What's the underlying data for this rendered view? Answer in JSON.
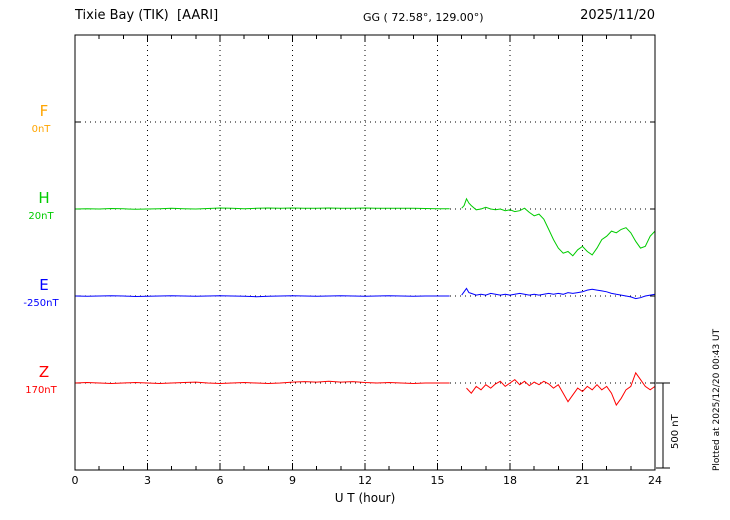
{
  "header": {
    "title": "Tixie Bay (TIK)  [AARI]",
    "coords": "GG ( 72.58°, 129.00°)",
    "date": "2025/11/20"
  },
  "footer": {
    "plotted_at": "Plotted at 2025/12/20 00:43 UT"
  },
  "chart_data": {
    "type": "line",
    "title": "Tixie Bay (TIK)  [AARI]",
    "xlabel": "U T (hour)",
    "x_range": [
      0,
      24
    ],
    "x_ticks": [
      0,
      3,
      6,
      9,
      12,
      15,
      18,
      21,
      24
    ],
    "y_unit": "nT",
    "values_are": "offset in nT from each channel baseline",
    "scale_bar_label": "500 nT",
    "scale_bar_nT": 500,
    "series": [
      {
        "name": "F",
        "color": "#FFA500",
        "baseline_label": "0nT",
        "baseline_value_nT": 0,
        "segments": []
      },
      {
        "name": "H",
        "color": "#00CC00",
        "baseline_label": "20nT",
        "baseline_value_nT": 20,
        "segments": [
          [
            [
              0,
              0
            ],
            [
              0.5,
              2
            ],
            [
              1,
              0
            ],
            [
              1.5,
              3
            ],
            [
              2,
              1
            ],
            [
              2.5,
              -2
            ],
            [
              3,
              0
            ],
            [
              3.5,
              2
            ],
            [
              4,
              4
            ],
            [
              4.5,
              2
            ],
            [
              5,
              0
            ],
            [
              5.5,
              3
            ],
            [
              6,
              6
            ],
            [
              6.5,
              4
            ],
            [
              7,
              2
            ],
            [
              7.5,
              4
            ],
            [
              8,
              6
            ],
            [
              8.5,
              5
            ],
            [
              9,
              6
            ],
            [
              9.5,
              4
            ],
            [
              10,
              5
            ],
            [
              10.5,
              6
            ],
            [
              11,
              4
            ],
            [
              11.5,
              5
            ],
            [
              12,
              6
            ],
            [
              12.5,
              5
            ],
            [
              13,
              4
            ],
            [
              13.5,
              5
            ],
            [
              14,
              4
            ],
            [
              14.5,
              3
            ],
            [
              15,
              2
            ],
            [
              15.5,
              2
            ]
          ],
          [
            [
              16,
              5
            ],
            [
              16.1,
              20
            ],
            [
              16.2,
              60
            ],
            [
              16.3,
              35
            ],
            [
              16.4,
              20
            ],
            [
              16.6,
              -5
            ],
            [
              16.8,
              0
            ],
            [
              17,
              10
            ],
            [
              17.2,
              0
            ],
            [
              17.4,
              -5
            ],
            [
              17.6,
              0
            ],
            [
              17.8,
              -10
            ],
            [
              18,
              -5
            ],
            [
              18.2,
              -15
            ],
            [
              18.4,
              -10
            ],
            [
              18.6,
              5
            ],
            [
              18.8,
              -20
            ],
            [
              19,
              -40
            ],
            [
              19.2,
              -30
            ],
            [
              19.4,
              -60
            ],
            [
              19.6,
              -120
            ],
            [
              19.8,
              -180
            ],
            [
              20,
              -230
            ],
            [
              20.2,
              -260
            ],
            [
              20.4,
              -250
            ],
            [
              20.6,
              -275
            ],
            [
              20.8,
              -240
            ],
            [
              21,
              -220
            ],
            [
              21.2,
              -250
            ],
            [
              21.4,
              -270
            ],
            [
              21.6,
              -230
            ],
            [
              21.8,
              -180
            ],
            [
              22,
              -160
            ],
            [
              22.2,
              -130
            ],
            [
              22.4,
              -140
            ],
            [
              22.6,
              -120
            ],
            [
              22.8,
              -110
            ],
            [
              23,
              -140
            ],
            [
              23.2,
              -190
            ],
            [
              23.4,
              -230
            ],
            [
              23.6,
              -220
            ],
            [
              23.8,
              -160
            ],
            [
              24,
              -130
            ]
          ]
        ]
      },
      {
        "name": "E",
        "color": "#0000FF",
        "baseline_label": "-250nT",
        "baseline_value_nT": -250,
        "segments": [
          [
            [
              0,
              0
            ],
            [
              0.5,
              -2
            ],
            [
              1,
              0
            ],
            [
              1.5,
              2
            ],
            [
              2,
              0
            ],
            [
              2.5,
              -3
            ],
            [
              3,
              -2
            ],
            [
              3.5,
              0
            ],
            [
              4,
              2
            ],
            [
              4.5,
              0
            ],
            [
              5,
              -2
            ],
            [
              5.5,
              0
            ],
            [
              6,
              2
            ],
            [
              6.5,
              0
            ],
            [
              7,
              -2
            ],
            [
              7.5,
              -4
            ],
            [
              8,
              -2
            ],
            [
              8.5,
              0
            ],
            [
              9,
              2
            ],
            [
              9.5,
              0
            ],
            [
              10,
              -2
            ],
            [
              10.5,
              0
            ],
            [
              11,
              2
            ],
            [
              11.5,
              0
            ],
            [
              12,
              -2
            ],
            [
              12.5,
              0
            ],
            [
              13,
              2
            ],
            [
              13.5,
              0
            ],
            [
              14,
              -2
            ],
            [
              14.5,
              0
            ],
            [
              15,
              0
            ],
            [
              15.5,
              0
            ]
          ],
          [
            [
              16,
              5
            ],
            [
              16.2,
              45
            ],
            [
              16.3,
              20
            ],
            [
              16.4,
              15
            ],
            [
              16.6,
              5
            ],
            [
              16.8,
              10
            ],
            [
              17,
              5
            ],
            [
              17.2,
              15
            ],
            [
              17.4,
              10
            ],
            [
              17.6,
              5
            ],
            [
              17.8,
              10
            ],
            [
              18,
              5
            ],
            [
              18.2,
              10
            ],
            [
              18.4,
              15
            ],
            [
              18.6,
              10
            ],
            [
              18.8,
              5
            ],
            [
              19,
              10
            ],
            [
              19.2,
              5
            ],
            [
              19.4,
              10
            ],
            [
              19.6,
              15
            ],
            [
              19.8,
              10
            ],
            [
              20,
              15
            ],
            [
              20.2,
              10
            ],
            [
              20.4,
              20
            ],
            [
              20.6,
              15
            ],
            [
              20.8,
              20
            ],
            [
              21,
              25
            ],
            [
              21.2,
              35
            ],
            [
              21.4,
              40
            ],
            [
              21.6,
              35
            ],
            [
              21.8,
              30
            ],
            [
              22,
              25
            ],
            [
              22.2,
              15
            ],
            [
              22.4,
              10
            ],
            [
              22.6,
              5
            ],
            [
              22.8,
              0
            ],
            [
              23,
              -5
            ],
            [
              23.2,
              -15
            ],
            [
              23.4,
              -10
            ],
            [
              23.6,
              0
            ],
            [
              23.8,
              5
            ],
            [
              24,
              10
            ]
          ]
        ]
      },
      {
        "name": "Z",
        "color": "#FF0000",
        "baseline_label": "170nT",
        "baseline_value_nT": 170,
        "segments": [
          [
            [
              0,
              0
            ],
            [
              0.5,
              3
            ],
            [
              1,
              0
            ],
            [
              1.5,
              -3
            ],
            [
              2,
              0
            ],
            [
              2.5,
              3
            ],
            [
              3,
              0
            ],
            [
              3.5,
              -3
            ],
            [
              4,
              0
            ],
            [
              4.5,
              3
            ],
            [
              5,
              5
            ],
            [
              5.5,
              0
            ],
            [
              6,
              -3
            ],
            [
              6.5,
              0
            ],
            [
              7,
              3
            ],
            [
              7.5,
              0
            ],
            [
              8,
              -3
            ],
            [
              8.5,
              0
            ],
            [
              9,
              5
            ],
            [
              9.5,
              8
            ],
            [
              10,
              5
            ],
            [
              10.5,
              10
            ],
            [
              11,
              5
            ],
            [
              11.5,
              8
            ],
            [
              12,
              3
            ],
            [
              12.5,
              0
            ],
            [
              13,
              3
            ],
            [
              13.5,
              0
            ],
            [
              14,
              -3
            ],
            [
              14.5,
              0
            ],
            [
              15,
              0
            ],
            [
              15.5,
              0
            ]
          ],
          [
            [
              16.2,
              -30
            ],
            [
              16.4,
              -60
            ],
            [
              16.6,
              -20
            ],
            [
              16.8,
              -40
            ],
            [
              17,
              -10
            ],
            [
              17.2,
              -30
            ],
            [
              17.4,
              -5
            ],
            [
              17.6,
              10
            ],
            [
              17.8,
              -20
            ],
            [
              18,
              0
            ],
            [
              18.2,
              20
            ],
            [
              18.4,
              -10
            ],
            [
              18.6,
              10
            ],
            [
              18.8,
              -15
            ],
            [
              19,
              5
            ],
            [
              19.2,
              -10
            ],
            [
              19.4,
              10
            ],
            [
              19.6,
              -5
            ],
            [
              19.8,
              -30
            ],
            [
              20,
              -10
            ],
            [
              20.2,
              -60
            ],
            [
              20.4,
              -110
            ],
            [
              20.6,
              -70
            ],
            [
              20.8,
              -30
            ],
            [
              21,
              -50
            ],
            [
              21.2,
              -20
            ],
            [
              21.4,
              -40
            ],
            [
              21.6,
              -10
            ],
            [
              21.8,
              -40
            ],
            [
              22,
              -20
            ],
            [
              22.2,
              -60
            ],
            [
              22.4,
              -130
            ],
            [
              22.6,
              -90
            ],
            [
              22.8,
              -40
            ],
            [
              23,
              -20
            ],
            [
              23.2,
              60
            ],
            [
              23.4,
              20
            ],
            [
              23.6,
              -20
            ],
            [
              23.8,
              -40
            ],
            [
              24,
              -20
            ]
          ]
        ]
      }
    ]
  }
}
